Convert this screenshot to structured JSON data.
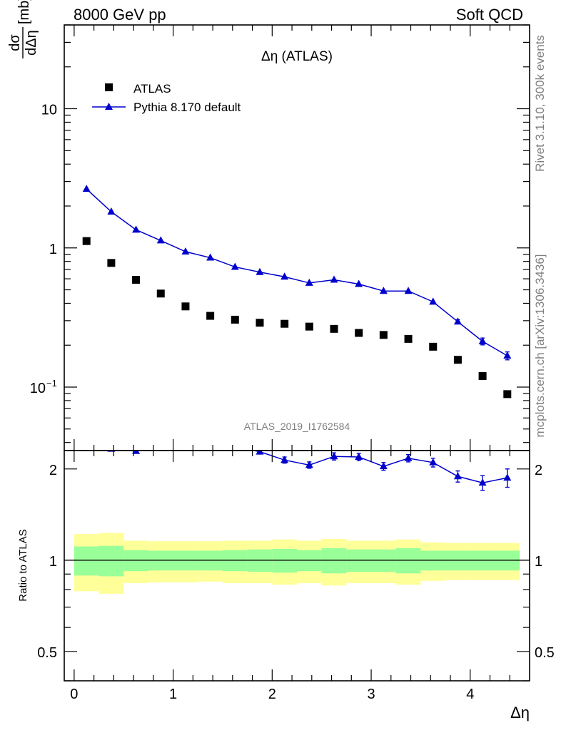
{
  "header": {
    "left": "8000 GeV pp",
    "right": "Soft QCD"
  },
  "side": {
    "rivet": "Rivet 3.1.10,  300k events",
    "source": "mcplots.cern.ch [arXiv:1306.3436]"
  },
  "chart_data": [
    {
      "type": "scatter",
      "panel": "main",
      "title": "Δη (ATLAS)",
      "watermark": "ATLAS_2019_I1762584",
      "ylabel": {
        "num": "dσ",
        "den": "dΔη",
        "unit": "[mb]"
      },
      "yscale": "log",
      "ylim": [
        0.035,
        40
      ],
      "xlim": [
        -0.1,
        4.6
      ],
      "yticks": [
        {
          "value": 10,
          "label": "10"
        },
        {
          "value": 1,
          "label": "1"
        },
        {
          "value": 0.1,
          "label": "10",
          "sup": "−1"
        }
      ],
      "legend": {
        "placement": "top-left",
        "entries": [
          "ATLAS",
          "Pythia 8.170 default"
        ]
      },
      "x": [
        0.125,
        0.375,
        0.625,
        0.875,
        1.125,
        1.375,
        1.625,
        1.875,
        2.125,
        2.375,
        2.625,
        2.875,
        3.125,
        3.375,
        3.625,
        3.875,
        4.125,
        4.375
      ],
      "series": [
        {
          "name": "ATLAS",
          "marker": "square",
          "color": "#000000",
          "values": [
            1.12,
            0.78,
            0.59,
            0.47,
            0.38,
            0.325,
            0.305,
            0.29,
            0.285,
            0.272,
            0.262,
            0.245,
            0.237,
            0.222,
            0.195,
            0.157,
            0.12,
            0.089
          ]
        },
        {
          "name": "Pythia 8.170 default",
          "marker": "triangle",
          "color": "#0000cc",
          "values": [
            2.65,
            1.82,
            1.35,
            1.13,
            0.94,
            0.85,
            0.73,
            0.67,
            0.62,
            0.56,
            0.59,
            0.55,
            0.49,
            0.49,
            0.41,
            0.295,
            0.213,
            0.168
          ],
          "errors": [
            0,
            0,
            0,
            0,
            0,
            0,
            0,
            0,
            0,
            0,
            0,
            0,
            0,
            0,
            0,
            0.01,
            0.012,
            0.011
          ]
        }
      ]
    },
    {
      "type": "line",
      "panel": "ratio",
      "ylabel": "Ratio to ATLAS",
      "xlabel": "Δη",
      "yscale": "log",
      "ylim": [
        0.4,
        2.3
      ],
      "xlim": [
        -0.1,
        4.6
      ],
      "yticks": [
        {
          "value": 2,
          "label": "2"
        },
        {
          "value": 1,
          "label": "1"
        },
        {
          "value": 0.5,
          "label": "0.5"
        }
      ],
      "xticks": [
        0,
        1,
        2,
        3,
        4
      ],
      "bins": [
        [
          0,
          0.25
        ],
        [
          0.25,
          0.5
        ],
        [
          0.5,
          0.75
        ],
        [
          0.75,
          1.0
        ],
        [
          1.0,
          1.25
        ],
        [
          1.25,
          1.5
        ],
        [
          1.5,
          1.75
        ],
        [
          1.75,
          2.0
        ],
        [
          2.0,
          2.25
        ],
        [
          2.25,
          2.5
        ],
        [
          2.5,
          2.75
        ],
        [
          2.75,
          3.0
        ],
        [
          3.0,
          3.25
        ],
        [
          3.25,
          3.5
        ],
        [
          3.5,
          3.75
        ],
        [
          3.75,
          4.0
        ],
        [
          4.0,
          4.25
        ],
        [
          4.25,
          4.5
        ]
      ],
      "band_stat": {
        "color": "#99ff99",
        "lo": [
          0.89,
          0.885,
          0.92,
          0.925,
          0.925,
          0.925,
          0.92,
          0.915,
          0.91,
          0.92,
          0.905,
          0.915,
          0.915,
          0.905,
          0.925,
          0.925,
          0.925,
          0.925
        ],
        "hi": [
          1.11,
          1.115,
          1.08,
          1.075,
          1.075,
          1.075,
          1.08,
          1.085,
          1.09,
          1.08,
          1.095,
          1.085,
          1.085,
          1.095,
          1.075,
          1.075,
          1.075,
          1.075
        ]
      },
      "band_total": {
        "color": "#ffff99",
        "lo": [
          0.79,
          0.775,
          0.84,
          0.845,
          0.845,
          0.85,
          0.84,
          0.84,
          0.83,
          0.84,
          0.825,
          0.84,
          0.84,
          0.83,
          0.855,
          0.86,
          0.86,
          0.86
        ],
        "hi": [
          1.22,
          1.23,
          1.16,
          1.155,
          1.155,
          1.155,
          1.16,
          1.16,
          1.17,
          1.16,
          1.175,
          1.16,
          1.16,
          1.17,
          1.145,
          1.14,
          1.14,
          1.14
        ]
      },
      "series": [
        {
          "name": "Pythia 8.170 default",
          "color": "#0000cc",
          "values": [
            2.36,
            2.33,
            2.29,
            2.4,
            2.46,
            2.61,
            2.37,
            2.28,
            2.14,
            2.06,
            2.2,
            2.19,
            2.04,
            2.17,
            2.1,
            1.89,
            1.8,
            1.87
          ],
          "errors": [
            0,
            0,
            0,
            0,
            0,
            0,
            0,
            0.04,
            0.05,
            0.05,
            0.06,
            0.06,
            0.06,
            0.06,
            0.07,
            0.08,
            0.1,
            0.13
          ]
        }
      ]
    }
  ]
}
